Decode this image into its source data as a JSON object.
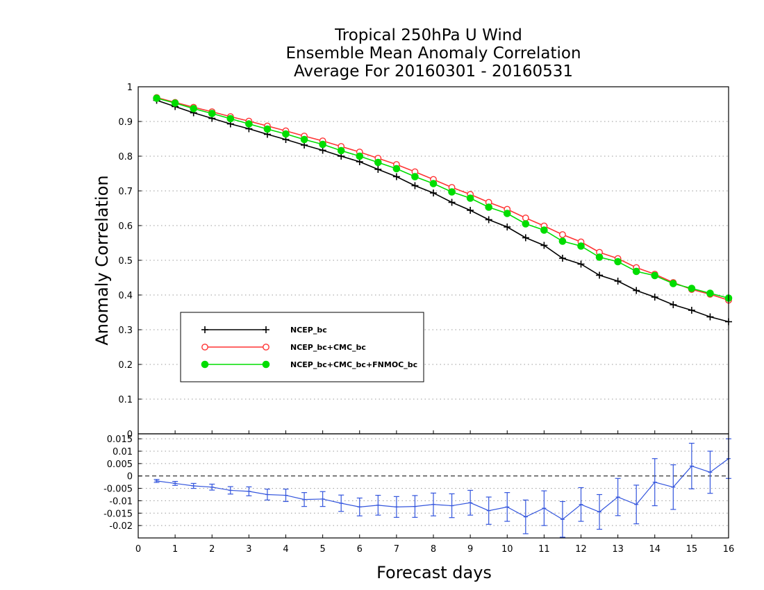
{
  "chart_data": {
    "type": "line",
    "title": [
      "Tropical 250hPa U Wind",
      "Ensemble Mean Anomaly Correlation",
      "Average For 20160301 - 20160531"
    ],
    "xlabel": "Forecast days",
    "ylabel": "Anomaly Correlation",
    "xlim": [
      0,
      16
    ],
    "ylim": [
      0,
      1
    ],
    "x_ticks": [
      "0",
      "1",
      "2",
      "3",
      "4",
      "5",
      "6",
      "7",
      "8",
      "9",
      "10",
      "11",
      "12",
      "13",
      "14",
      "15",
      "16"
    ],
    "y_ticks": [
      "0",
      "0.1",
      "0.2",
      "0.3",
      "0.4",
      "0.5",
      "0.6",
      "0.7",
      "0.8",
      "0.9",
      "1"
    ],
    "grid": true,
    "legend_position": "middle-left",
    "x": [
      0.5,
      1,
      1.5,
      2,
      2.5,
      3,
      3.5,
      4,
      4.5,
      5,
      5.5,
      6,
      6.5,
      7,
      7.5,
      8,
      8.5,
      9,
      9.5,
      10,
      10.5,
      11,
      11.5,
      12,
      12.5,
      13,
      13.5,
      14,
      14.5,
      15,
      15.5,
      16
    ],
    "series": [
      {
        "name": "NCEP_bc",
        "color": "#000000",
        "marker": "plus",
        "values": [
          0.961,
          0.943,
          0.925,
          0.909,
          0.893,
          0.879,
          0.863,
          0.848,
          0.832,
          0.817,
          0.8,
          0.784,
          0.762,
          0.741,
          0.715,
          0.694,
          0.667,
          0.644,
          0.617,
          0.596,
          0.565,
          0.543,
          0.506,
          0.489,
          0.457,
          0.44,
          0.413,
          0.394,
          0.372,
          0.356,
          0.337,
          0.323
        ]
      },
      {
        "name": "NCEP_bc+CMC_bc",
        "color": "#ff3333",
        "marker": "open-circle",
        "values": [
          0.969,
          0.955,
          0.941,
          0.928,
          0.914,
          0.901,
          0.887,
          0.873,
          0.858,
          0.844,
          0.828,
          0.812,
          0.794,
          0.776,
          0.755,
          0.733,
          0.71,
          0.69,
          0.667,
          0.647,
          0.622,
          0.599,
          0.574,
          0.553,
          0.523,
          0.505,
          0.479,
          0.46,
          0.436,
          0.416,
          0.402,
          0.385
        ]
      },
      {
        "name": "NCEP_bc+CMC_bc+FNMOC_bc",
        "color": "#00dd00",
        "marker": "filled-circle",
        "values": [
          0.967,
          0.953,
          0.937,
          0.923,
          0.908,
          0.893,
          0.878,
          0.864,
          0.848,
          0.834,
          0.816,
          0.8,
          0.782,
          0.764,
          0.741,
          0.721,
          0.697,
          0.679,
          0.653,
          0.635,
          0.605,
          0.587,
          0.555,
          0.541,
          0.509,
          0.496,
          0.468,
          0.456,
          0.433,
          0.419,
          0.405,
          0.391
        ]
      }
    ],
    "difference_panel": {
      "ylim": [
        -0.025,
        0.017
      ],
      "y_ticks": [
        "0.015",
        "0.01",
        "0.005",
        "0",
        "-0.005",
        "-0.01",
        "-0.015",
        "-0.02"
      ],
      "color": "#3355dd",
      "values": [
        -0.002,
        -0.003,
        -0.004,
        -0.0045,
        -0.0058,
        -0.0062,
        -0.0075,
        -0.0078,
        -0.0095,
        -0.0093,
        -0.011,
        -0.0125,
        -0.0118,
        -0.0125,
        -0.0123,
        -0.0115,
        -0.012,
        -0.0108,
        -0.014,
        -0.0125,
        -0.0165,
        -0.013,
        -0.0175,
        -0.0115,
        -0.0145,
        -0.0085,
        -0.0115,
        -0.0025,
        -0.0045,
        0.004,
        0.0015,
        0.007
      ],
      "error": [
        0.0006,
        0.0008,
        0.001,
        0.0012,
        0.0015,
        0.0018,
        0.0022,
        0.0025,
        0.0028,
        0.003,
        0.0033,
        0.0036,
        0.004,
        0.0042,
        0.0044,
        0.0046,
        0.0048,
        0.005,
        0.0055,
        0.0058,
        0.0068,
        0.007,
        0.0072,
        0.0068,
        0.007,
        0.0075,
        0.0078,
        0.0095,
        0.009,
        0.0092,
        0.0085,
        0.008
      ]
    }
  }
}
